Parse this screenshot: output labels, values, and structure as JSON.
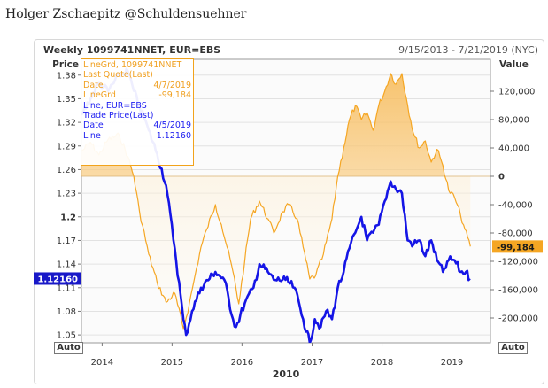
{
  "author": "Holger Zschaepitz @Schuldensuehner",
  "chart_title": "Weekly 1099741NNET, EUR=EBS",
  "date_range": "9/15/2013 - 7/21/2019 (NYC)",
  "auto_left": "Auto",
  "auto_right": "Auto",
  "legend": {
    "rows": [
      {
        "left": "LineGrd, 1099741NNET",
        "right": "",
        "color": "orange"
      },
      {
        "left": "Last Quote(Last)",
        "right": "",
        "color": "orange"
      },
      {
        "left": "Date",
        "right": "4/7/2019",
        "color": "orange"
      },
      {
        "left": "LineGrd",
        "right": "-99,184",
        "color": "orange"
      },
      {
        "left": "Line, EUR=EBS",
        "right": "",
        "color": "blue"
      },
      {
        "left": "Trade Price(Last)",
        "right": "",
        "color": "blue"
      },
      {
        "left": "Date",
        "right": "4/5/2019",
        "color": "blue"
      },
      {
        "left": "Line",
        "right": "1.12160",
        "color": "blue"
      }
    ]
  },
  "chart_data": {
    "type": "line",
    "title": "Weekly 1099741NNET, EUR=EBS",
    "xlabel": "2010",
    "x_ticks": [
      "2014",
      "2015",
      "2016",
      "2017",
      "2018",
      "2019"
    ],
    "left_axis": {
      "label": "Price",
      "ylim": [
        1.04,
        1.4
      ],
      "ticks": [
        "1.38",
        "1.35",
        "1.32",
        "1.29",
        "1.26",
        "1.23",
        "1.2",
        "1.17",
        "1.14",
        "1.11",
        "1.08",
        "1.05"
      ],
      "last_value_label": "1.12160"
    },
    "right_axis": {
      "label": "Value",
      "ylim": [
        -235000,
        165000
      ],
      "ticks": [
        "120,000",
        "80,000",
        "40,000",
        "0",
        "-40,000",
        "-80,000",
        "-120,000",
        "-160,000",
        "-200,000"
      ],
      "last_value_label": "-99,184"
    },
    "series": [
      {
        "name": "LineGrd, 1099741NNET",
        "color": "#f5a623",
        "axis": "right",
        "points": [
          [
            "2013-09-15",
            35000
          ],
          [
            "2013-11-01",
            48000
          ],
          [
            "2013-12-15",
            30000
          ],
          [
            "2014-02-01",
            52000
          ],
          [
            "2014-04-01",
            58000
          ],
          [
            "2014-05-15",
            28000
          ],
          [
            "2014-06-15",
            0
          ],
          [
            "2014-07-15",
            -50000
          ],
          [
            "2014-09-01",
            -110000
          ],
          [
            "2014-10-15",
            -150000
          ],
          [
            "2014-12-01",
            -178000
          ],
          [
            "2015-01-15",
            -165000
          ],
          [
            "2015-03-01",
            -215000
          ],
          [
            "2015-04-01",
            -180000
          ],
          [
            "2015-05-01",
            -140000
          ],
          [
            "2015-06-01",
            -100000
          ],
          [
            "2015-07-01",
            -75000
          ],
          [
            "2015-08-15",
            -40000
          ],
          [
            "2015-09-15",
            -68000
          ],
          [
            "2015-10-15",
            -100000
          ],
          [
            "2015-11-15",
            -135000
          ],
          [
            "2015-12-15",
            -180000
          ],
          [
            "2016-01-15",
            -120000
          ],
          [
            "2016-02-15",
            -60000
          ],
          [
            "2016-04-01",
            -35000
          ],
          [
            "2016-05-15",
            -60000
          ],
          [
            "2016-06-15",
            -80000
          ],
          [
            "2016-08-01",
            -50000
          ],
          [
            "2016-09-01",
            -40000
          ],
          [
            "2016-10-15",
            -60000
          ],
          [
            "2016-11-15",
            -100000
          ],
          [
            "2016-12-20",
            -145000
          ],
          [
            "2017-01-20",
            -140000
          ],
          [
            "2017-03-01",
            -110000
          ],
          [
            "2017-04-15",
            -60000
          ],
          [
            "2017-05-15",
            0
          ],
          [
            "2017-06-15",
            40000
          ],
          [
            "2017-07-15",
            80000
          ],
          [
            "2017-08-15",
            100000
          ],
          [
            "2017-09-15",
            80000
          ],
          [
            "2017-10-15",
            90000
          ],
          [
            "2017-11-15",
            65000
          ],
          [
            "2017-12-15",
            100000
          ],
          [
            "2018-01-15",
            120000
          ],
          [
            "2018-02-15",
            145000
          ],
          [
            "2018-03-15",
            130000
          ],
          [
            "2018-04-15",
            145000
          ],
          [
            "2018-05-15",
            100000
          ],
          [
            "2018-06-15",
            60000
          ],
          [
            "2018-07-15",
            40000
          ],
          [
            "2018-08-15",
            50000
          ],
          [
            "2018-09-15",
            20000
          ],
          [
            "2018-10-15",
            38000
          ],
          [
            "2018-11-15",
            15000
          ],
          [
            "2018-12-15",
            -20000
          ],
          [
            "2019-01-15",
            -30000
          ],
          [
            "2019-02-15",
            -55000
          ],
          [
            "2019-03-10",
            -75000
          ],
          [
            "2019-04-07",
            -99184
          ]
        ]
      },
      {
        "name": "Line, EUR=EBS",
        "color": "#1515e6",
        "axis": "left",
        "points": [
          [
            "2013-09-15",
            1.33
          ],
          [
            "2013-11-01",
            1.35
          ],
          [
            "2013-12-15",
            1.37
          ],
          [
            "2014-02-01",
            1.36
          ],
          [
            "2014-04-01",
            1.38
          ],
          [
            "2014-05-15",
            1.385
          ],
          [
            "2014-06-15",
            1.36
          ],
          [
            "2014-07-15",
            1.34
          ],
          [
            "2014-09-01",
            1.31
          ],
          [
            "2014-10-15",
            1.28
          ],
          [
            "2014-12-01",
            1.24
          ],
          [
            "2015-01-15",
            1.16
          ],
          [
            "2015-03-01",
            1.07
          ],
          [
            "2015-03-15",
            1.05
          ],
          [
            "2015-04-15",
            1.08
          ],
          [
            "2015-06-01",
            1.11
          ],
          [
            "2015-08-15",
            1.13
          ],
          [
            "2015-10-01",
            1.12
          ],
          [
            "2015-11-15",
            1.07
          ],
          [
            "2015-12-01",
            1.06
          ],
          [
            "2016-01-15",
            1.09
          ],
          [
            "2016-03-01",
            1.11
          ],
          [
            "2016-04-01",
            1.14
          ],
          [
            "2016-05-15",
            1.13
          ],
          [
            "2016-06-15",
            1.12
          ],
          [
            "2016-08-15",
            1.12
          ],
          [
            "2016-10-01",
            1.11
          ],
          [
            "2016-11-15",
            1.07
          ],
          [
            "2016-12-20",
            1.04
          ],
          [
            "2017-01-15",
            1.07
          ],
          [
            "2017-02-15",
            1.06
          ],
          [
            "2017-03-15",
            1.08
          ],
          [
            "2017-04-15",
            1.07
          ],
          [
            "2017-05-15",
            1.11
          ],
          [
            "2017-06-15",
            1.13
          ],
          [
            "2017-07-15",
            1.16
          ],
          [
            "2017-08-15",
            1.18
          ],
          [
            "2017-09-15",
            1.2
          ],
          [
            "2017-10-15",
            1.17
          ],
          [
            "2017-11-15",
            1.18
          ],
          [
            "2017-12-15",
            1.19
          ],
          [
            "2018-01-15",
            1.22
          ],
          [
            "2018-02-15",
            1.245
          ],
          [
            "2018-03-15",
            1.235
          ],
          [
            "2018-04-15",
            1.23
          ],
          [
            "2018-05-15",
            1.17
          ],
          [
            "2018-06-15",
            1.165
          ],
          [
            "2018-07-15",
            1.17
          ],
          [
            "2018-08-15",
            1.15
          ],
          [
            "2018-09-15",
            1.17
          ],
          [
            "2018-10-15",
            1.145
          ],
          [
            "2018-11-15",
            1.13
          ],
          [
            "2018-12-15",
            1.145
          ],
          [
            "2019-01-15",
            1.145
          ],
          [
            "2019-02-15",
            1.13
          ],
          [
            "2019-03-15",
            1.13
          ],
          [
            "2019-04-05",
            1.1216
          ]
        ]
      }
    ]
  }
}
